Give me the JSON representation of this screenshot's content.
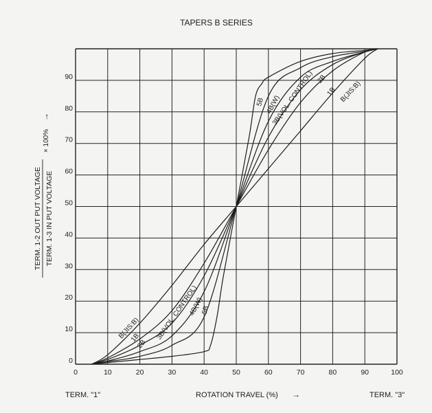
{
  "chart_data": {
    "type": "line",
    "title": "TAPERS B SERIES",
    "xlabel": "ROTATION TRAVEL (%)",
    "xlabel_arrow": "→",
    "ylabel_numerator": "TERM. 1-2 OUT PUT VOLTAGE",
    "ylabel_denominator": "TERM. 1-3 IN PUT VOLTAGE",
    "ylabel_multiplier": "× 100%",
    "ylabel_arrow": "→",
    "term_left": "TERM. \"1\"",
    "term_right": "TERM. \"3\"",
    "xlim": [
      0,
      100
    ],
    "ylim": [
      0,
      100
    ],
    "x_ticks": [
      0,
      10,
      20,
      30,
      40,
      50,
      60,
      70,
      80,
      90,
      100
    ],
    "y_ticks": [
      0,
      10,
      20,
      30,
      40,
      50,
      60,
      70,
      80,
      90
    ],
    "grid": true,
    "series": [
      {
        "name": "B(JIS:B)",
        "points": [
          [
            5,
            0
          ],
          [
            10,
            3
          ],
          [
            20,
            13
          ],
          [
            30,
            25
          ],
          [
            40,
            38
          ],
          [
            50,
            50
          ],
          [
            60,
            62
          ],
          [
            70,
            74
          ],
          [
            80,
            86
          ],
          [
            90,
            97
          ],
          [
            94,
            100
          ]
        ],
        "label_low": {
          "x": 17,
          "y": 11,
          "angle": -47
        },
        "label_high": {
          "x": 86,
          "y": 86,
          "angle": -47
        }
      },
      {
        "name": "1B",
        "points": [
          [
            5,
            0
          ],
          [
            10,
            2
          ],
          [
            20,
            8
          ],
          [
            30,
            17
          ],
          [
            40,
            32
          ],
          [
            50,
            50
          ],
          [
            60,
            68
          ],
          [
            70,
            83
          ],
          [
            80,
            93
          ],
          [
            90,
            99
          ],
          [
            94,
            100
          ]
        ],
        "label_low": {
          "x": 19,
          "y": 8,
          "angle": -50
        },
        "label_high": {
          "x": 80,
          "y": 86,
          "angle": -50
        }
      },
      {
        "name": "2B",
        "points": [
          [
            5,
            0
          ],
          [
            10,
            1.5
          ],
          [
            20,
            6
          ],
          [
            30,
            13
          ],
          [
            40,
            28
          ],
          [
            50,
            50
          ],
          [
            60,
            72
          ],
          [
            70,
            87
          ],
          [
            80,
            95
          ],
          [
            90,
            99
          ],
          [
            94,
            100
          ]
        ],
        "label_low": {
          "x": 21,
          "y": 6,
          "angle": -50
        },
        "label_high": {
          "x": 77,
          "y": 90,
          "angle": -50
        }
      },
      {
        "name": "3B(VOL. CONTROL)",
        "points": [
          [
            5,
            0
          ],
          [
            10,
            1
          ],
          [
            20,
            4
          ],
          [
            30,
            9
          ],
          [
            40,
            23
          ],
          [
            50,
            50
          ],
          [
            60,
            77
          ],
          [
            70,
            91
          ],
          [
            80,
            96
          ],
          [
            90,
            99
          ],
          [
            94,
            100
          ]
        ],
        "label_low": {
          "x": 32,
          "y": 16,
          "angle": -55
        },
        "label_high": {
          "x": 68,
          "y": 84,
          "angle": -55
        }
      },
      {
        "name": "4B(W)",
        "points": [
          [
            5,
            0
          ],
          [
            10,
            0.8
          ],
          [
            20,
            2.5
          ],
          [
            30,
            6
          ],
          [
            40,
            15
          ],
          [
            50,
            50
          ],
          [
            60,
            85
          ],
          [
            70,
            94
          ],
          [
            80,
            97.5
          ],
          [
            90,
            99.2
          ],
          [
            94,
            100
          ]
        ],
        "label_low": {
          "x": 38,
          "y": 18,
          "angle": -62
        },
        "label_high": {
          "x": 62,
          "y": 82,
          "angle": -62
        }
      },
      {
        "name": "5B",
        "points": [
          [
            5,
            0
          ],
          [
            10,
            0.5
          ],
          [
            20,
            1.5
          ],
          [
            30,
            2.5
          ],
          [
            40,
            4
          ],
          [
            42,
            6
          ],
          [
            44,
            15
          ],
          [
            46,
            28
          ],
          [
            50,
            50
          ],
          [
            54,
            72
          ],
          [
            56,
            85
          ],
          [
            58,
            89
          ],
          [
            60,
            91
          ],
          [
            70,
            96
          ],
          [
            80,
            98.5
          ],
          [
            90,
            99.5
          ],
          [
            94,
            100
          ]
        ],
        "label_low": {
          "x": 41,
          "y": 17,
          "angle": -75
        },
        "label_high": {
          "x": 58,
          "y": 83,
          "angle": -75
        }
      }
    ]
  }
}
